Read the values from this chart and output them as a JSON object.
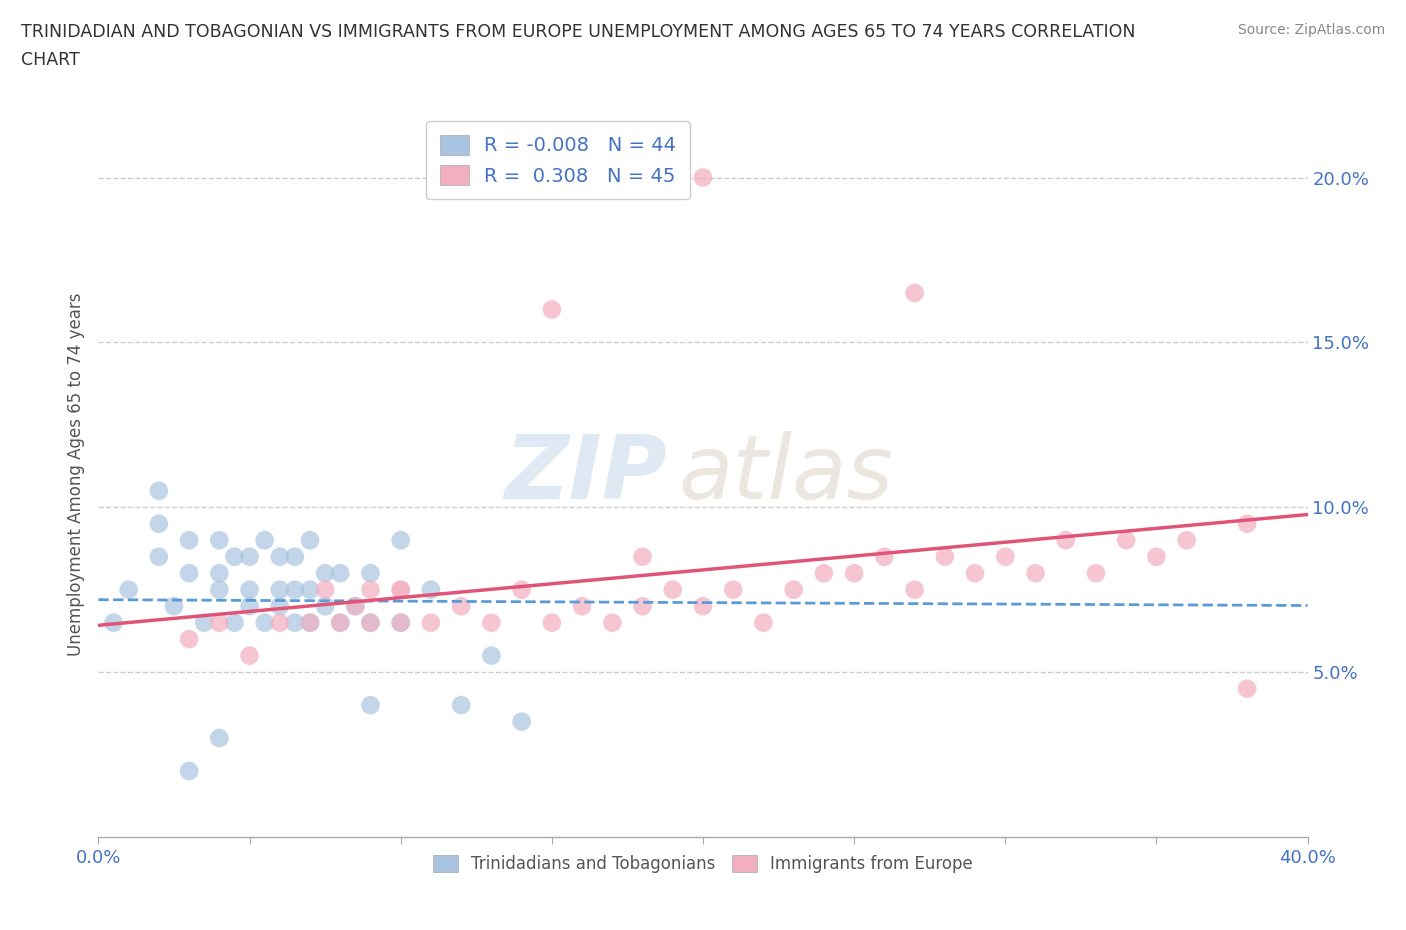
{
  "title_line1": "TRINIDADIAN AND TOBAGONIAN VS IMMIGRANTS FROM EUROPE UNEMPLOYMENT AMONG AGES 65 TO 74 YEARS CORRELATION",
  "title_line2": "CHART",
  "source_text": "Source: ZipAtlas.com",
  "ylabel": "Unemployment Among Ages 65 to 74 years",
  "xlim": [
    0.0,
    0.4
  ],
  "ylim": [
    0.0,
    0.22
  ],
  "yticks": [
    0.05,
    0.1,
    0.15,
    0.2
  ],
  "yticklabels": [
    "5.0%",
    "10.0%",
    "15.0%",
    "20.0%"
  ],
  "xticks": [
    0.0,
    0.05,
    0.1,
    0.15,
    0.2,
    0.25,
    0.3,
    0.35,
    0.4
  ],
  "grid_color": "#cccccc",
  "background_color": "#ffffff",
  "trini_color": "#a8c4e0",
  "europe_color": "#f2afc0",
  "trini_line_color": "#5b9bd5",
  "europe_line_color": "#e05577",
  "trini_R": -0.008,
  "trini_N": 44,
  "europe_R": 0.308,
  "europe_N": 45,
  "legend_label_trini": "Trinidadians and Tobagonians",
  "legend_label_europe": "Immigrants from Europe",
  "watermark_zip": "ZIP",
  "watermark_atlas": "atlas",
  "label_color": "#4472c4",
  "trini_x": [
    0.005,
    0.01,
    0.02,
    0.02,
    0.025,
    0.03,
    0.03,
    0.035,
    0.04,
    0.04,
    0.04,
    0.045,
    0.045,
    0.05,
    0.05,
    0.05,
    0.055,
    0.055,
    0.06,
    0.06,
    0.06,
    0.065,
    0.065,
    0.065,
    0.07,
    0.07,
    0.07,
    0.075,
    0.075,
    0.08,
    0.08,
    0.085,
    0.09,
    0.09,
    0.1,
    0.1,
    0.11,
    0.12,
    0.13,
    0.14,
    0.02,
    0.03,
    0.04,
    0.09
  ],
  "trini_y": [
    0.065,
    0.075,
    0.085,
    0.095,
    0.07,
    0.08,
    0.09,
    0.065,
    0.075,
    0.08,
    0.09,
    0.065,
    0.085,
    0.07,
    0.075,
    0.085,
    0.065,
    0.09,
    0.07,
    0.075,
    0.085,
    0.065,
    0.075,
    0.085,
    0.065,
    0.075,
    0.09,
    0.07,
    0.08,
    0.065,
    0.08,
    0.07,
    0.065,
    0.08,
    0.065,
    0.09,
    0.075,
    0.04,
    0.055,
    0.035,
    0.105,
    0.02,
    0.03,
    0.04
  ],
  "europe_x": [
    0.03,
    0.04,
    0.05,
    0.06,
    0.07,
    0.075,
    0.08,
    0.085,
    0.09,
    0.09,
    0.1,
    0.1,
    0.11,
    0.12,
    0.13,
    0.14,
    0.15,
    0.16,
    0.17,
    0.18,
    0.19,
    0.2,
    0.21,
    0.22,
    0.23,
    0.24,
    0.25,
    0.26,
    0.27,
    0.28,
    0.29,
    0.3,
    0.31,
    0.32,
    0.33,
    0.34,
    0.35,
    0.36,
    0.1,
    0.18,
    0.27,
    0.38,
    0.38,
    0.2,
    0.15
  ],
  "europe_y": [
    0.06,
    0.065,
    0.055,
    0.065,
    0.065,
    0.075,
    0.065,
    0.07,
    0.065,
    0.075,
    0.065,
    0.075,
    0.065,
    0.07,
    0.065,
    0.075,
    0.065,
    0.07,
    0.065,
    0.07,
    0.075,
    0.07,
    0.075,
    0.065,
    0.075,
    0.08,
    0.08,
    0.085,
    0.075,
    0.085,
    0.08,
    0.085,
    0.08,
    0.09,
    0.08,
    0.09,
    0.085,
    0.09,
    0.075,
    0.085,
    0.165,
    0.045,
    0.095,
    0.2,
    0.16
  ]
}
